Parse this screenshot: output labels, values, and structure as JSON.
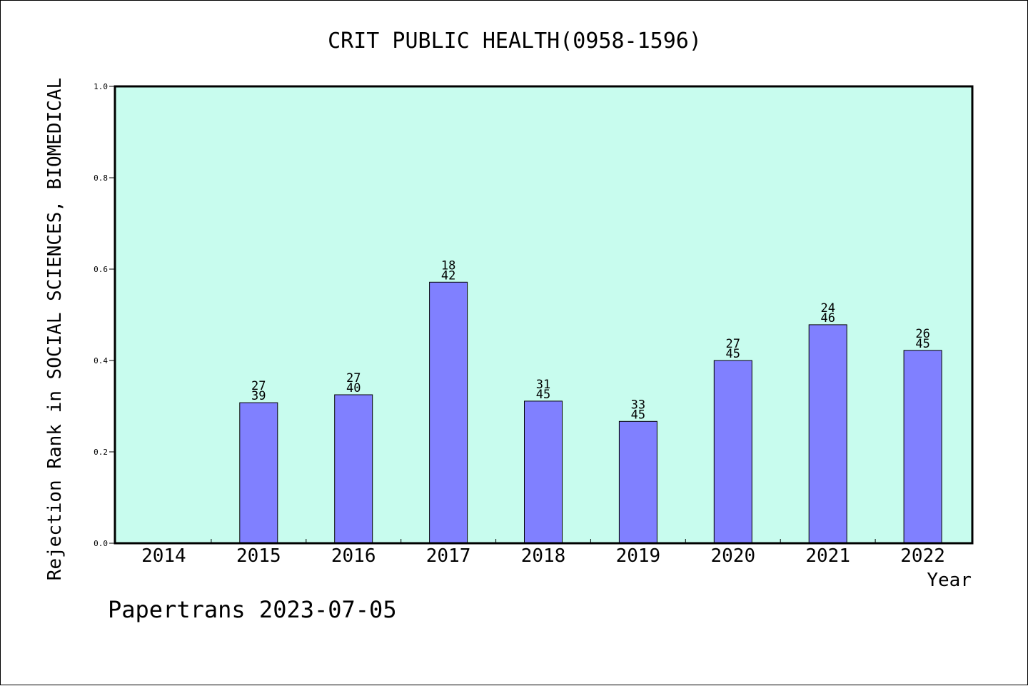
{
  "chart_data": {
    "type": "bar",
    "title": "CRIT PUBLIC HEALTH(0958-1596)",
    "xlabel": "Year",
    "ylabel": "Rejection Rank in SOCIAL SCIENCES, BIOMEDICAL",
    "ylim": [
      0,
      1.0
    ],
    "yticks": [
      "0.0",
      "0.2",
      "0.4",
      "0.6",
      "0.8",
      "1.0"
    ],
    "categories": [
      "2014",
      "2015",
      "2016",
      "2017",
      "2018",
      "2019",
      "2020",
      "2021",
      "2022"
    ],
    "values": [
      null,
      0.3077,
      0.325,
      0.5714,
      0.3111,
      0.2667,
      0.4,
      0.4783,
      0.4222
    ],
    "labels_top": [
      "",
      "27",
      "27",
      "18",
      "31",
      "33",
      "27",
      "24",
      "26"
    ],
    "labels_bottom": [
      "",
      "39",
      "40",
      "42",
      "45",
      "45",
      "45",
      "46",
      "45"
    ],
    "grid": false,
    "colors": {
      "plot_bg": "#c8fcee",
      "bar_fill": "#8080ff",
      "bar_stroke": "#000000"
    }
  },
  "footer": "Papertrans 2023-07-05"
}
